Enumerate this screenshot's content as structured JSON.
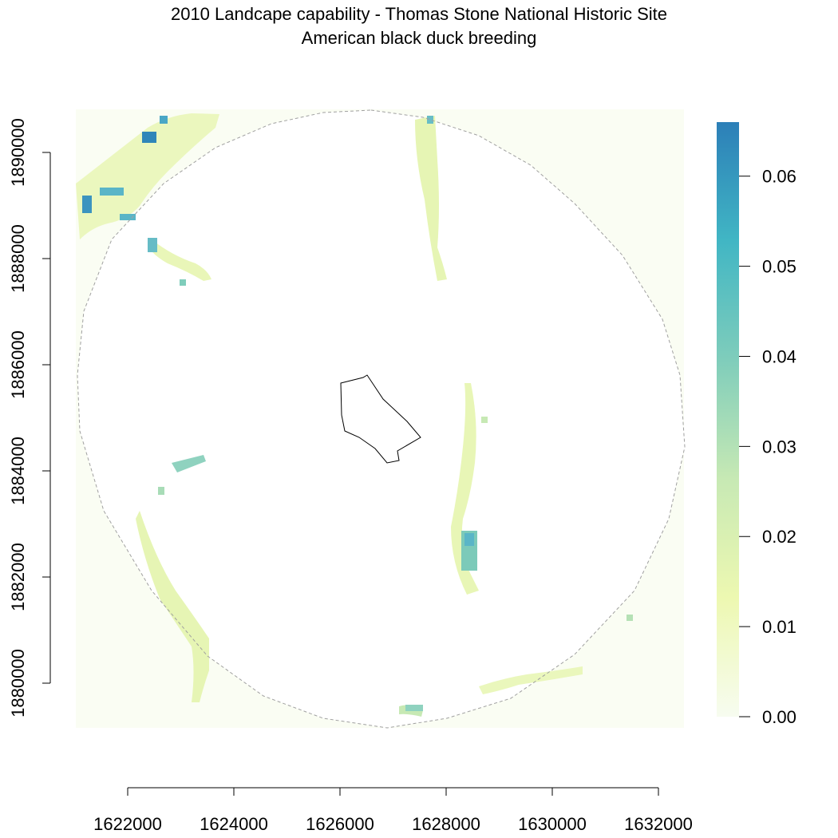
{
  "title": "2010 Landcape capability - Thomas Stone National Historic Site",
  "subtitle": "American black duck breeding",
  "x_axis": {
    "ticks": [
      1622000,
      1624000,
      1626000,
      1628000,
      1630000,
      1632000
    ],
    "tick_labels": [
      "1622000",
      "1624000",
      "1626000",
      "1628000",
      "1630000",
      "1632000"
    ]
  },
  "y_axis": {
    "ticks": [
      1880000,
      1882000,
      1884000,
      1886000,
      1888000,
      1890000
    ],
    "tick_labels": [
      "1880000",
      "1882000",
      "1884000",
      "1886000",
      "1888000",
      "1890000"
    ]
  },
  "legend": {
    "ticks": [
      0.0,
      0.01,
      0.02,
      0.03,
      0.04,
      0.05,
      0.06
    ],
    "tick_labels": [
      "0.00",
      "0.01",
      "0.02",
      "0.03",
      "0.04",
      "0.05",
      "0.06"
    ],
    "range": [
      0.0,
      0.066
    ],
    "colors": [
      "#f7fcf0",
      "#edf8b1",
      "#c7e9b4",
      "#7fcdbb",
      "#41b6c4",
      "#2c7fb8"
    ]
  },
  "colors": {
    "background": "#ffffff",
    "buffer_outline": "#a0a0a0",
    "site_outline": "#000000"
  }
}
